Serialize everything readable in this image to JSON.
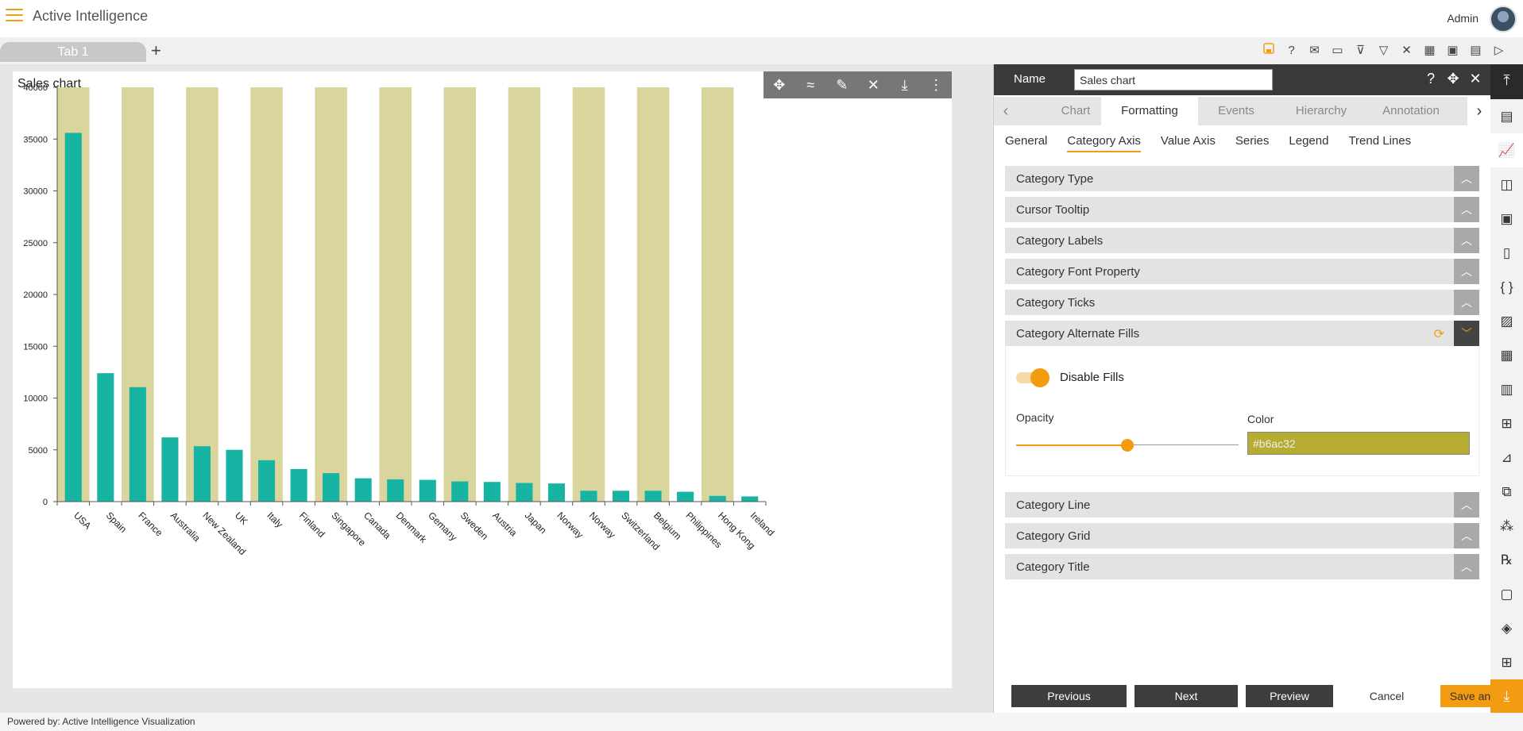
{
  "app": {
    "title": "Active Intelligence",
    "user": "Admin"
  },
  "tabs": {
    "items": [
      {
        "label": "Tab 1"
      }
    ],
    "add_label": "+"
  },
  "toolbar_icons": [
    "save-icon",
    "help-icon",
    "mail-icon",
    "comment-icon",
    "clear-filter-icon",
    "filter-icon",
    "settings-icon",
    "grid-icon",
    "display-icon",
    "devices-icon",
    "play-icon"
  ],
  "colors": {
    "accent": "#f39c12",
    "bar": "#17b3a3",
    "alt_fill": "#d9d59c",
    "fill_color": "#b6ac32"
  },
  "chart_card": {
    "title": "Sales chart",
    "toolbar_icons": [
      "move-icon",
      "draw-icon",
      "edit-icon",
      "tools-icon",
      "download-icon",
      "more-icon"
    ]
  },
  "chart_data": {
    "type": "bar",
    "title": "Sales chart",
    "categories": [
      "USA",
      "Spain",
      "France",
      "Australia",
      "New Zealand",
      "UK",
      "Italy",
      "Finland",
      "Singapore",
      "Canada",
      "Denmark",
      "Gemany",
      "Sweden",
      "Austria",
      "Japan",
      "Norway",
      "Norway",
      "Switzerland",
      "Belgium",
      "Philippines",
      "Hong Kong",
      "Ireland"
    ],
    "values": [
      35600,
      12400,
      11050,
      6200,
      5350,
      5000,
      4000,
      3150,
      2750,
      2250,
      2150,
      2100,
      1950,
      1900,
      1800,
      1750,
      1050,
      1050,
      1050,
      950,
      550,
      500
    ],
    "y_ticks": [
      "0",
      "5000",
      "10000",
      "15000",
      "20000",
      "25000",
      "30000",
      "35000",
      "40000"
    ],
    "ylim": [
      0,
      40000
    ],
    "alternate_fills": true,
    "grid": false
  },
  "footer": {
    "text": "Powered by: Active Intelligence Visualization"
  },
  "panel": {
    "name_label": "Name",
    "name_value": "Sales chart",
    "tabs": [
      "Chart",
      "Formatting",
      "Events",
      "Hierarchy",
      "Annotation"
    ],
    "active_tab": "Formatting",
    "sub_tabs": [
      "General",
      "Category Axis",
      "Value Axis",
      "Series",
      "Legend",
      "Trend Lines"
    ],
    "active_sub_tab": "Category Axis",
    "sections_before": [
      "Category Type",
      "Cursor Tooltip",
      "Category Labels",
      "Category Font Property",
      "Category Ticks"
    ],
    "open_section": "Category Alternate Fills",
    "sections_after": [
      "Category Line",
      "Category Grid",
      "Category Title"
    ],
    "disable_fills_label": "Disable Fills",
    "disable_fills_on": true,
    "opacity_label": "Opacity",
    "opacity_value": 0.5,
    "color_label": "Color",
    "color_value": "#b6ac32",
    "buttons": {
      "previous": "Previous",
      "next": "Next",
      "preview": "Preview",
      "cancel": "Cancel",
      "save": "Save and Exit"
    }
  }
}
